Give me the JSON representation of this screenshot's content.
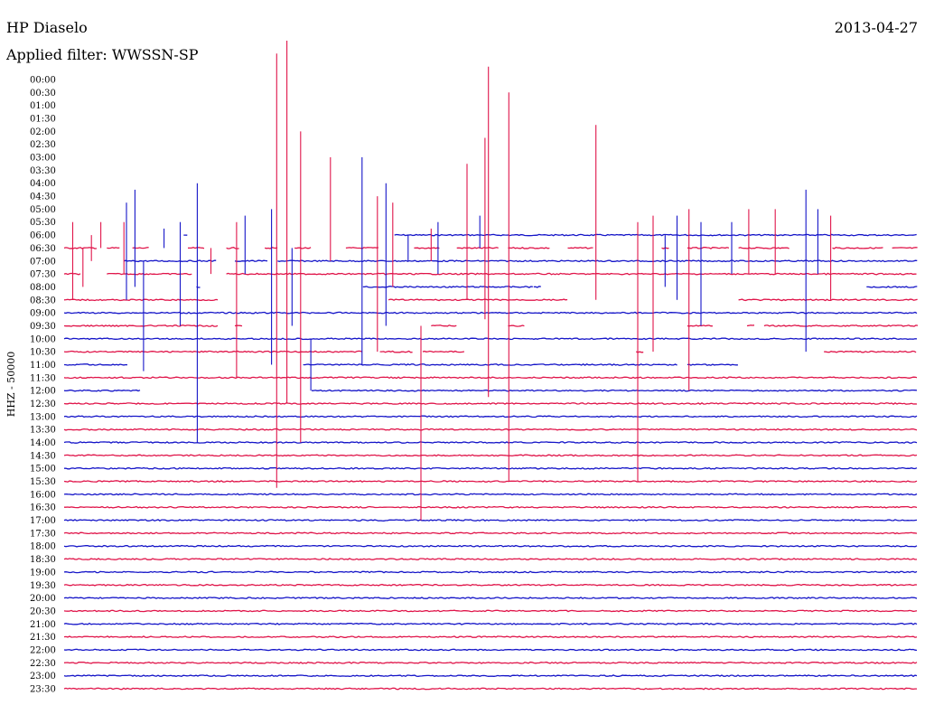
{
  "header": {
    "station": "HP Diaselo",
    "filter": "Applied filter: WWSSN-SP",
    "date": "2013-04-27"
  },
  "chart_data": {
    "type": "line",
    "title": "",
    "ylabel": "HHZ - 50000",
    "xlabel": "",
    "grid": false,
    "legend": "none",
    "tick_labels": [
      "00:00",
      "00:30",
      "01:00",
      "01:30",
      "02:00",
      "02:30",
      "03:00",
      "03:30",
      "04:00",
      "04:30",
      "05:00",
      "05:30",
      "06:00",
      "06:30",
      "07:00",
      "07:30",
      "08:00",
      "08:30",
      "09:00",
      "09:30",
      "10:00",
      "10:30",
      "11:00",
      "11:30",
      "12:00",
      "12:30",
      "13:00",
      "13:30",
      "14:00",
      "14:30",
      "15:00",
      "15:30",
      "16:00",
      "16:30",
      "17:00",
      "17:30",
      "18:00",
      "18:30",
      "19:00",
      "19:30",
      "20:00",
      "20:30",
      "21:00",
      "21:30",
      "22:00",
      "22:30",
      "23:00",
      "23:30"
    ],
    "trace_colors": [
      "#1515c8",
      "#e0154a"
    ],
    "x_range": [
      0,
      1
    ],
    "traces": [
      {
        "label": "06:00",
        "color": "#1515c8",
        "segments": [
          [
            0.14,
            0.145
          ],
          [
            0.387,
            1
          ]
        ]
      },
      {
        "label": "06:30",
        "color": "#e0154a",
        "segments": [
          [
            0,
            0.04
          ],
          [
            0.05,
            0.065
          ],
          [
            0.08,
            0.1
          ],
          [
            0.145,
            0.165
          ],
          [
            0.19,
            0.205
          ],
          [
            0.235,
            0.25
          ],
          [
            0.27,
            0.29
          ],
          [
            0.33,
            0.37
          ],
          [
            0.41,
            0.44
          ],
          [
            0.46,
            0.51
          ],
          [
            0.52,
            0.57
          ],
          [
            0.59,
            0.62
          ],
          [
            0.7,
            0.71
          ],
          [
            0.73,
            0.78
          ],
          [
            0.79,
            0.85
          ],
          [
            0.9,
            0.96
          ],
          [
            0.97,
            1
          ]
        ]
      },
      {
        "label": "07:00",
        "color": "#1515c8",
        "segments": [
          [
            0.07,
            0.18
          ],
          [
            0.2,
            0.24
          ],
          [
            0.25,
            1
          ]
        ]
      },
      {
        "label": "07:30",
        "color": "#e0154a",
        "segments": [
          [
            0,
            0.02
          ],
          [
            0.05,
            0.15
          ],
          [
            0.19,
            1
          ]
        ]
      },
      {
        "label": "08:00",
        "color": "#1515c8",
        "segments": [
          [
            0.155,
            0.16
          ],
          [
            0.35,
            0.55
          ],
          [
            0.55,
            0.56
          ],
          [
            0.94,
            1
          ]
        ]
      },
      {
        "label": "08:30",
        "color": "#e0154a",
        "segments": [
          [
            0,
            0.18
          ],
          [
            0.38,
            0.59
          ],
          [
            0.79,
            1
          ]
        ]
      },
      {
        "label": "09:00",
        "color": "#1515c8",
        "segments": [
          [
            0,
            1
          ]
        ]
      },
      {
        "label": "09:30",
        "color": "#e0154a",
        "segments": [
          [
            0,
            0.18
          ],
          [
            0.2,
            0.21
          ],
          [
            0.43,
            0.46
          ],
          [
            0.52,
            0.54
          ],
          [
            0.73,
            0.76
          ],
          [
            0.8,
            0.81
          ],
          [
            0.82,
            1
          ]
        ]
      },
      {
        "label": "10:00",
        "color": "#1515c8",
        "segments": [
          [
            0,
            1
          ]
        ]
      },
      {
        "label": "10:30",
        "color": "#e0154a",
        "segments": [
          [
            0,
            0.35
          ],
          [
            0.37,
            0.41
          ],
          [
            0.42,
            0.47
          ],
          [
            0.67,
            0.68
          ],
          [
            0.89,
            1
          ]
        ]
      },
      {
        "label": "11:00",
        "color": "#1515c8",
        "segments": [
          [
            0,
            0.075
          ],
          [
            0.28,
            0.72
          ],
          [
            0.73,
            0.79
          ]
        ]
      },
      {
        "label": "11:30",
        "color": "#e0154a",
        "segments": [
          [
            0,
            1
          ]
        ]
      },
      {
        "label": "12:00",
        "color": "#1515c8",
        "segments": [
          [
            0,
            0.09
          ],
          [
            0.29,
            1
          ]
        ]
      },
      {
        "label": "12:30",
        "color": "#e0154a",
        "segments": [
          [
            0,
            1
          ]
        ]
      },
      {
        "label": "13:00",
        "color": "#1515c8",
        "segments": [
          [
            0,
            1
          ]
        ]
      },
      {
        "label": "13:30",
        "color": "#e0154a",
        "segments": [
          [
            0,
            1
          ]
        ]
      },
      {
        "label": "14:00",
        "color": "#1515c8",
        "segments": [
          [
            0,
            1
          ]
        ]
      },
      {
        "label": "14:30",
        "color": "#e0154a",
        "segments": [
          [
            0,
            1
          ]
        ]
      },
      {
        "label": "15:00",
        "color": "#1515c8",
        "segments": [
          [
            0,
            1
          ]
        ]
      },
      {
        "label": "15:30",
        "color": "#e0154a",
        "segments": [
          [
            0,
            1
          ]
        ]
      },
      {
        "label": "16:00",
        "color": "#1515c8",
        "segments": [
          [
            0,
            1
          ]
        ]
      },
      {
        "label": "16:30",
        "color": "#e0154a",
        "segments": [
          [
            0,
            1
          ]
        ]
      },
      {
        "label": "17:00",
        "color": "#1515c8",
        "segments": [
          [
            0,
            1
          ]
        ]
      },
      {
        "label": "17:30",
        "color": "#e0154a",
        "segments": [
          [
            0,
            1
          ]
        ]
      },
      {
        "label": "18:00",
        "color": "#1515c8",
        "segments": [
          [
            0,
            1
          ]
        ]
      },
      {
        "label": "18:30",
        "color": "#e0154a",
        "segments": [
          [
            0,
            1
          ]
        ]
      },
      {
        "label": "19:00",
        "color": "#1515c8",
        "segments": [
          [
            0,
            1
          ]
        ]
      },
      {
        "label": "19:30",
        "color": "#e0154a",
        "segments": [
          [
            0,
            1
          ]
        ]
      },
      {
        "label": "20:00",
        "color": "#1515c8",
        "segments": [
          [
            0,
            1
          ]
        ]
      },
      {
        "label": "20:30",
        "color": "#e0154a",
        "segments": [
          [
            0,
            1
          ]
        ]
      },
      {
        "label": "21:00",
        "color": "#1515c8",
        "segments": [
          [
            0,
            1
          ]
        ]
      },
      {
        "label": "21:30",
        "color": "#e0154a",
        "segments": [
          [
            0,
            1
          ]
        ]
      },
      {
        "label": "22:00",
        "color": "#1515c8",
        "segments": [
          [
            0,
            1
          ]
        ]
      },
      {
        "label": "22:30",
        "color": "#e0154a",
        "segments": [
          [
            0,
            1
          ]
        ]
      },
      {
        "label": "23:00",
        "color": "#1515c8",
        "segments": [
          [
            0,
            1
          ]
        ]
      },
      {
        "label": "23:30",
        "color": "#e0154a",
        "segments": [
          [
            0,
            1
          ]
        ]
      }
    ],
    "spikes": [
      {
        "x": 0.01,
        "top": "05:30",
        "bottom": "08:30",
        "color": "#e0154a"
      },
      {
        "x": 0.022,
        "top": "06:30",
        "bottom": "08:00",
        "color": "#e0154a"
      },
      {
        "x": 0.032,
        "top": "06:00",
        "bottom": "07:00",
        "color": "#e0154a"
      },
      {
        "x": 0.043,
        "top": "05:30",
        "bottom": "06:30",
        "color": "#e0154a"
      },
      {
        "x": 0.07,
        "top": "05:30",
        "bottom": "07:30",
        "color": "#e0154a"
      },
      {
        "x": 0.073,
        "top": "04:45",
        "bottom": "08:30",
        "color": "#1515c8"
      },
      {
        "x": 0.083,
        "top": "04:15",
        "bottom": "08:00",
        "color": "#1515c8"
      },
      {
        "x": 0.093,
        "top": "07:00",
        "bottom": "11:15",
        "color": "#1515c8"
      },
      {
        "x": 0.117,
        "top": "05:45",
        "bottom": "06:30",
        "color": "#1515c8"
      },
      {
        "x": 0.136,
        "top": "05:30",
        "bottom": "09:30",
        "color": "#1515c8"
      },
      {
        "x": 0.156,
        "top": "04:00",
        "bottom": "14:00",
        "color": "#1515c8"
      },
      {
        "x": 0.172,
        "top": "06:30",
        "bottom": "07:30",
        "color": "#e0154a"
      },
      {
        "x": 0.202,
        "top": "05:30",
        "bottom": "11:30",
        "color": "#e0154a"
      },
      {
        "x": 0.212,
        "top": "05:15",
        "bottom": "07:30",
        "color": "#1515c8"
      },
      {
        "x": 0.243,
        "top": "05:00",
        "bottom": "11:00",
        "color": "#1515c8"
      },
      {
        "x": 0.249,
        "top": "-01:00",
        "bottom": "15:45",
        "color": "#e0154a"
      },
      {
        "x": 0.261,
        "top": "-01:30",
        "bottom": "12:30",
        "color": "#e0154a"
      },
      {
        "x": 0.267,
        "top": "06:30",
        "bottom": "09:30",
        "color": "#1515c8"
      },
      {
        "x": 0.277,
        "top": "02:00",
        "bottom": "14:00",
        "color": "#e0154a"
      },
      {
        "x": 0.289,
        "top": "10:00",
        "bottom": "12:00",
        "color": "#1515c8"
      },
      {
        "x": 0.312,
        "top": "03:00",
        "bottom": "07:00",
        "color": "#e0154a"
      },
      {
        "x": 0.349,
        "top": "03:00",
        "bottom": "11:00",
        "color": "#1515c8"
      },
      {
        "x": 0.367,
        "top": "04:30",
        "bottom": "10:30",
        "color": "#e0154a"
      },
      {
        "x": 0.377,
        "top": "04:00",
        "bottom": "09:30",
        "color": "#1515c8"
      },
      {
        "x": 0.385,
        "top": "04:45",
        "bottom": "08:00",
        "color": "#e0154a"
      },
      {
        "x": 0.403,
        "top": "06:00",
        "bottom": "07:00",
        "color": "#1515c8"
      },
      {
        "x": 0.418,
        "top": "09:30",
        "bottom": "17:00",
        "color": "#e0154a"
      },
      {
        "x": 0.43,
        "top": "05:45",
        "bottom": "07:00",
        "color": "#e0154a"
      },
      {
        "x": 0.438,
        "top": "05:30",
        "bottom": "07:30",
        "color": "#1515c8"
      },
      {
        "x": 0.472,
        "top": "03:15",
        "bottom": "08:30",
        "color": "#e0154a"
      },
      {
        "x": 0.487,
        "top": "05:15",
        "bottom": "06:30",
        "color": "#1515c8"
      },
      {
        "x": 0.493,
        "top": "02:15",
        "bottom": "09:15",
        "color": "#e0154a"
      },
      {
        "x": 0.497,
        "top": "-00:30",
        "bottom": "12:15",
        "color": "#e0154a"
      },
      {
        "x": 0.521,
        "top": "00:30",
        "bottom": "15:30",
        "color": "#e0154a"
      },
      {
        "x": 0.623,
        "top": "01:45",
        "bottom": "08:30",
        "color": "#e0154a"
      },
      {
        "x": 0.672,
        "top": "05:30",
        "bottom": "15:30",
        "color": "#e0154a"
      },
      {
        "x": 0.69,
        "top": "05:15",
        "bottom": "10:30",
        "color": "#e0154a"
      },
      {
        "x": 0.704,
        "top": "06:00",
        "bottom": "08:00",
        "color": "#1515c8"
      },
      {
        "x": 0.718,
        "top": "05:15",
        "bottom": "08:30",
        "color": "#1515c8"
      },
      {
        "x": 0.732,
        "top": "05:00",
        "bottom": "12:00",
        "color": "#e0154a"
      },
      {
        "x": 0.746,
        "top": "05:30",
        "bottom": "09:30",
        "color": "#1515c8"
      },
      {
        "x": 0.782,
        "top": "05:30",
        "bottom": "07:30",
        "color": "#1515c8"
      },
      {
        "x": 0.802,
        "top": "05:00",
        "bottom": "07:30",
        "color": "#e0154a"
      },
      {
        "x": 0.833,
        "top": "05:00",
        "bottom": "07:30",
        "color": "#e0154a"
      },
      {
        "x": 0.869,
        "top": "04:15",
        "bottom": "10:30",
        "color": "#1515c8"
      },
      {
        "x": 0.883,
        "top": "05:00",
        "bottom": "07:30",
        "color": "#1515c8"
      },
      {
        "x": 0.898,
        "top": "05:15",
        "bottom": "08:30",
        "color": "#e0154a"
      }
    ]
  }
}
